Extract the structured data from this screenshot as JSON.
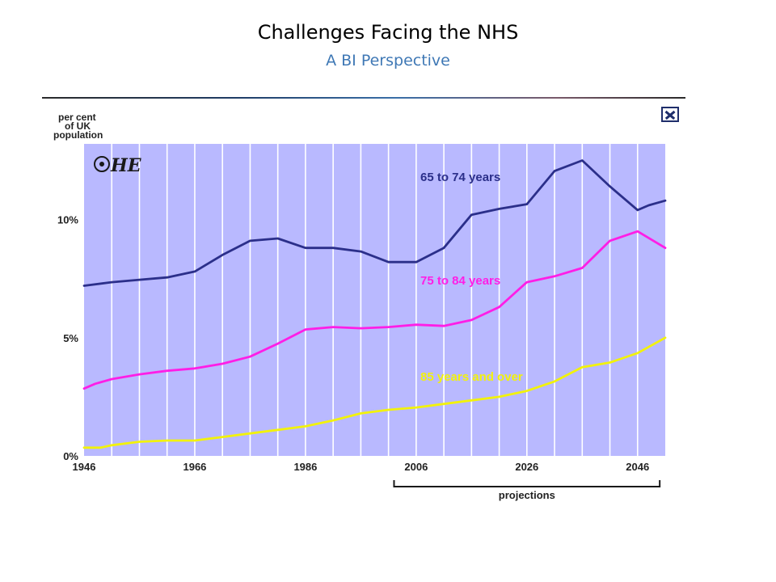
{
  "slide": {
    "title": "Challenges Facing the NHS",
    "subtitle": "A BI Perspective"
  },
  "chart_data": {
    "type": "line",
    "ylabel": "per cent of UK population",
    "logo": "OHE",
    "x_ticks": [
      1946,
      1966,
      1986,
      2006,
      2026,
      2046
    ],
    "y_ticks": [
      0,
      5,
      10
    ],
    "y_tick_labels": [
      "0%",
      "5%",
      "10%"
    ],
    "xlim": [
      1946,
      2051
    ],
    "ylim": [
      0,
      13.2
    ],
    "grid": true,
    "background": "#b9b9ff",
    "annotation": {
      "label": "projections",
      "from": 2002,
      "to": 2050
    },
    "series": [
      {
        "name": "65 to 74 years",
        "color": "#2b2f8a",
        "x": [
          1946,
          1951,
          1956,
          1961,
          1966,
          1971,
          1976,
          1981,
          1986,
          1991,
          1996,
          2001,
          2006,
          2011,
          2016,
          2021,
          2026,
          2031,
          2036,
          2041,
          2046,
          2048,
          2051
        ],
        "y": [
          7.2,
          7.35,
          7.45,
          7.55,
          7.8,
          8.5,
          9.1,
          9.2,
          8.8,
          8.8,
          8.65,
          8.2,
          8.2,
          8.8,
          10.2,
          10.45,
          10.65,
          12.05,
          12.5,
          11.4,
          10.4,
          10.6,
          10.8
        ]
      },
      {
        "name": "75 to 84 years",
        "color": "#ff1ee6",
        "x": [
          1946,
          1948,
          1951,
          1956,
          1961,
          1966,
          1971,
          1976,
          1981,
          1986,
          1991,
          1996,
          2001,
          2006,
          2011,
          2016,
          2021,
          2026,
          2031,
          2036,
          2041,
          2046,
          2051
        ],
        "y": [
          2.85,
          3.05,
          3.25,
          3.45,
          3.6,
          3.7,
          3.9,
          4.2,
          4.75,
          5.35,
          5.45,
          5.4,
          5.45,
          5.55,
          5.5,
          5.75,
          6.3,
          7.35,
          7.6,
          7.95,
          9.1,
          9.5,
          8.8
        ]
      },
      {
        "name": "85 years and over",
        "color": "#f2f20a",
        "x": [
          1946,
          1949,
          1951,
          1956,
          1961,
          1966,
          1971,
          1976,
          1981,
          1986,
          1991,
          1996,
          2001,
          2006,
          2011,
          2016,
          2021,
          2026,
          2031,
          2036,
          2041,
          2046,
          2051
        ],
        "y": [
          0.35,
          0.35,
          0.45,
          0.6,
          0.65,
          0.65,
          0.8,
          0.95,
          1.1,
          1.25,
          1.5,
          1.8,
          1.95,
          2.05,
          2.2,
          2.35,
          2.5,
          2.75,
          3.15,
          3.75,
          3.95,
          4.35,
          5.0
        ]
      }
    ]
  }
}
